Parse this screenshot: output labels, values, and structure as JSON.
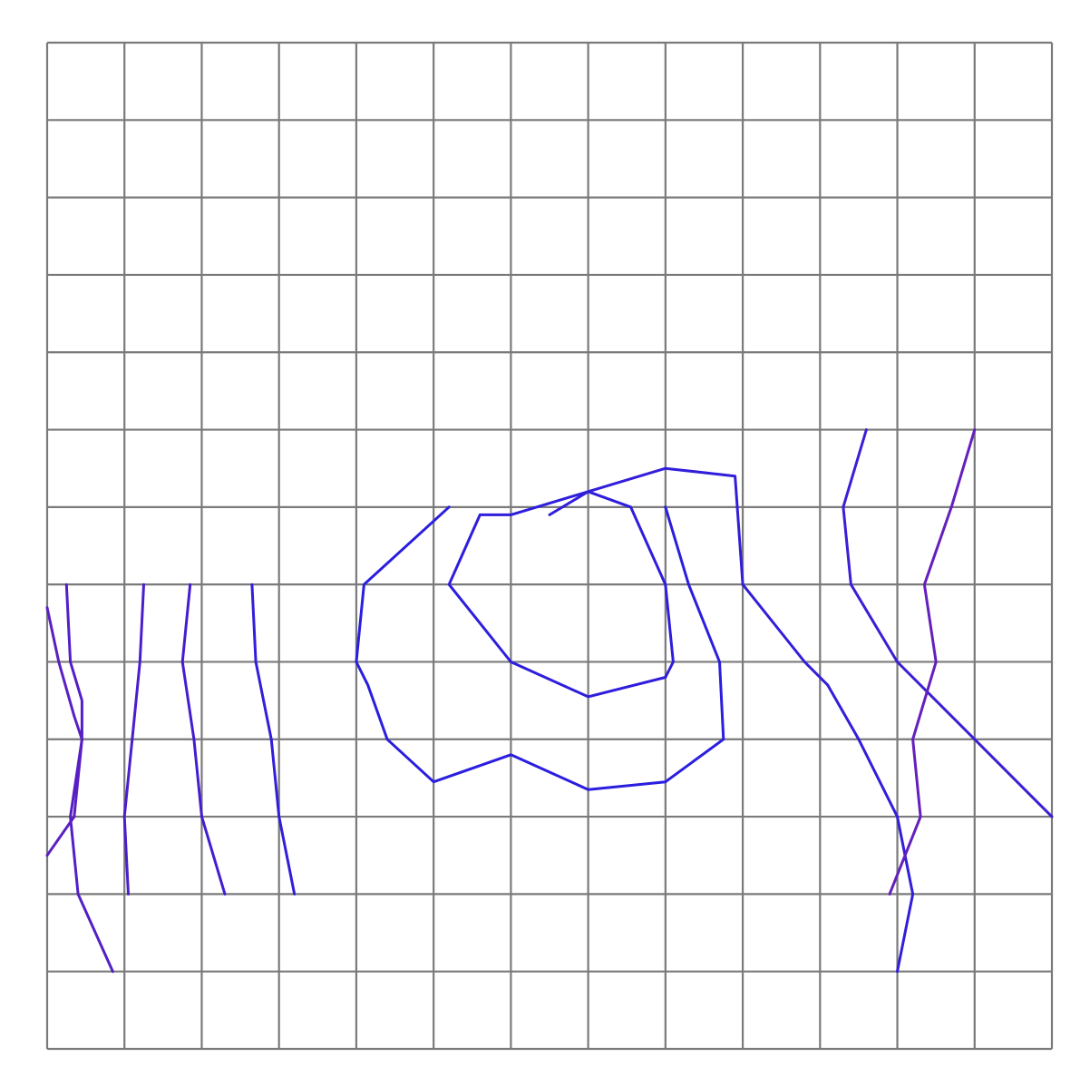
{
  "chart_data": {
    "type": "contour",
    "title": "",
    "xlabel": "",
    "ylabel": "",
    "grid": true,
    "grid_cells": [
      13,
      13
    ],
    "x_range": [
      0,
      13
    ],
    "y_range": [
      0,
      13
    ],
    "colors": {
      "low": "#1e1ee6",
      "mid": "#7a1fb0",
      "high": "#dd3030",
      "grid": "#7a7a7a",
      "background": "#ffffff"
    },
    "contours": [
      {
        "name": "",
        "level": 0.06,
        "x": [
          5.2,
          4.1,
          4.0,
          4.15,
          4.4,
          5.0,
          6.0,
          7.0,
          8.0,
          8.75,
          8.7,
          8.3,
          8.0
        ],
        "y": [
          7.0,
          6.0,
          5.0,
          4.7,
          4.0,
          3.45,
          3.8,
          3.35,
          3.45,
          4.0,
          5.0,
          6.0,
          7.0
        ]
      },
      {
        "name": "",
        "level": 0.08,
        "x": [
          5.6,
          5.2,
          5.6,
          6.0,
          7.0,
          8.0,
          8.1,
          8.0,
          7.55,
          7.0,
          6.0,
          5.6
        ],
        "y": [
          6.9,
          6.0,
          5.5,
          5.0,
          4.55,
          4.8,
          5.0,
          6.0,
          7.0,
          7.2,
          6.9,
          6.9
        ]
      },
      {
        "name": "",
        "level": 0.1,
        "x": [
          6.5,
          7.0,
          8.0,
          8.9,
          9.0
        ],
        "y": [
          6.9,
          7.2,
          7.5,
          7.4,
          6.0
        ]
      },
      {
        "name": "",
        "level": 0.1,
        "x": [
          2.65,
          2.7,
          2.9,
          3.0,
          3.2
        ],
        "y": [
          6.0,
          5.0,
          4.0,
          3.0,
          2.0
        ]
      },
      {
        "name": "",
        "level": 0.1,
        "x": [
          9.0,
          9.8,
          10.1,
          10.5,
          11.0,
          11.2,
          11.0
        ],
        "y": [
          6.0,
          5.0,
          4.7,
          4.0,
          3.0,
          2.0,
          1.0
        ]
      },
      {
        "name": "",
        "level": 0.14,
        "x": [
          10.6,
          10.3,
          10.4,
          11.0,
          12.0,
          13.0
        ],
        "y": [
          8.0,
          7.0,
          6.0,
          5.0,
          4.0,
          3.0
        ]
      },
      {
        "name": "",
        "level": 0.18,
        "x": [
          1.85,
          1.75,
          1.9,
          2.0,
          2.3
        ],
        "y": [
          6.0,
          5.0,
          4.0,
          3.0,
          2.0
        ]
      },
      {
        "name": "",
        "level": 0.22,
        "x": [
          1.25,
          1.2,
          1.1,
          1.0,
          1.05
        ],
        "y": [
          6.0,
          5.0,
          4.0,
          3.0,
          2.0
        ]
      },
      {
        "name": "",
        "level": 0.26,
        "x": [
          0.25,
          0.3,
          0.45,
          0.45,
          0.3,
          0.4,
          0.85
        ],
        "y": [
          6.0,
          5.0,
          4.5,
          4.0,
          3.0,
          2.0,
          1.0
        ]
      },
      {
        "name": "",
        "level": 0.34,
        "x": [
          12.0,
          11.7,
          11.35,
          11.5,
          11.2,
          11.3,
          10.9
        ],
        "y": [
          8.0,
          7.0,
          6.0,
          5.0,
          4.0,
          3.0,
          2.0
        ]
      },
      {
        "name": "",
        "level": 0.3,
        "x": [
          0.0,
          0.15,
          0.35,
          0.45,
          0.35,
          0.0
        ],
        "y": [
          5.7,
          5.0,
          4.3,
          4.0,
          3.0,
          2.5
        ]
      }
    ]
  }
}
